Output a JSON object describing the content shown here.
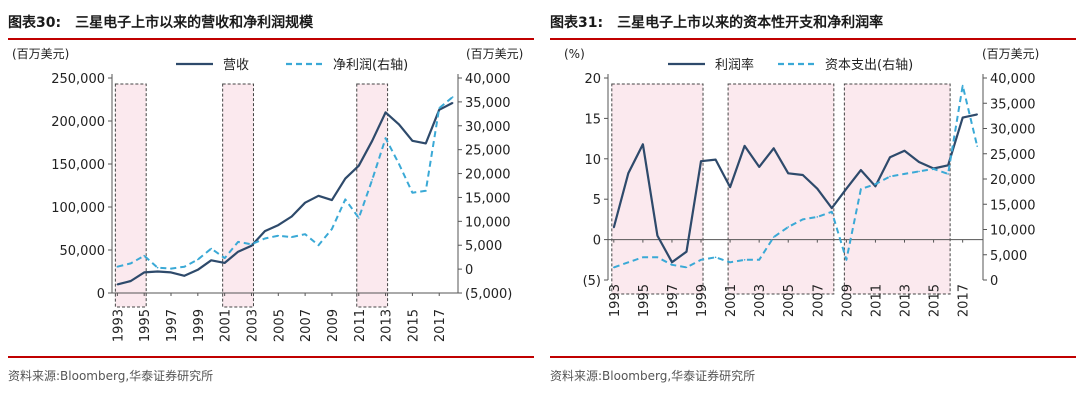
{
  "panels": [
    {
      "title_num": "图表30:",
      "title_text": "三星电子上市以来的营收和净利润规模",
      "source": "资料来源:Bloomberg,华泰证券研究所"
    },
    {
      "title_num": "图表31:",
      "title_text": "三星电子上市以来的资本性开支和净利润率",
      "source": "资料来源:Bloomberg,华泰证券研究所"
    }
  ],
  "colors": {
    "primary": "#2e4a6b",
    "secondary": "#3aa9d6",
    "rule": "#c00000",
    "shade": "#fbe9ee",
    "box": "#444444"
  },
  "chart_data": [
    {
      "type": "line",
      "x": [
        1993,
        1994,
        1995,
        1996,
        1997,
        1998,
        1999,
        2000,
        2001,
        2002,
        2003,
        2004,
        2005,
        2006,
        2007,
        2008,
        2009,
        2010,
        2011,
        2012,
        2013,
        2014,
        2015,
        2016,
        2017,
        2018
      ],
      "x_tick_labels": [
        "1993",
        "1995",
        "1997",
        "1999",
        "2001",
        "2003",
        "2005",
        "2007",
        "2009",
        "2011",
        "2013",
        "2015",
        "2017"
      ],
      "left_unit": "(百万美元)",
      "right_unit": "(百万美元)",
      "left_axis": {
        "lim": [
          0,
          250000
        ],
        "ticks": [
          0,
          50000,
          100000,
          150000,
          200000,
          250000
        ],
        "tick_labels": [
          "0",
          "50,000",
          "100,000",
          "150,000",
          "200,000",
          "250,000"
        ]
      },
      "right_axis": {
        "lim": [
          -5000,
          40000
        ],
        "ticks": [
          -5000,
          0,
          5000,
          10000,
          15000,
          20000,
          25000,
          30000,
          35000,
          40000
        ],
        "tick_labels": [
          "(5,000)",
          "0",
          "5,000",
          "10,000",
          "15,000",
          "20,000",
          "25,000",
          "30,000",
          "35,000",
          "40,000"
        ]
      },
      "series": [
        {
          "name": "营收",
          "axis": "left",
          "style": "solid",
          "values": [
            10000,
            14000,
            24000,
            25000,
            24000,
            20000,
            27000,
            38000,
            35000,
            48000,
            55000,
            72000,
            79000,
            89000,
            105000,
            113000,
            108000,
            133000,
            148000,
            177000,
            210000,
            196000,
            177000,
            174000,
            213000,
            221000
          ]
        },
        {
          "name": "净利润(右轴)",
          "axis": "right",
          "style": "dashed",
          "values": [
            500,
            1200,
            2800,
            300,
            100,
            500,
            2000,
            4300,
            2300,
            5700,
            5200,
            6400,
            7000,
            6700,
            7300,
            5000,
            8400,
            14600,
            10700,
            18700,
            27400,
            22000,
            16000,
            16400,
            33700,
            36000
          ]
        }
      ],
      "shaded_periods": [
        [
          1993,
          1995
        ],
        [
          2001,
          2003
        ],
        [
          2011,
          2013
        ]
      ]
    },
    {
      "type": "line",
      "x": [
        1993,
        1994,
        1995,
        1996,
        1997,
        1998,
        1999,
        2000,
        2001,
        2002,
        2003,
        2004,
        2005,
        2006,
        2007,
        2008,
        2009,
        2010,
        2011,
        2012,
        2013,
        2014,
        2015,
        2016,
        2017,
        2018
      ],
      "x_tick_labels": [
        "1993",
        "1995",
        "1997",
        "1999",
        "2001",
        "2003",
        "2005",
        "2007",
        "2009",
        "2011",
        "2013",
        "2015",
        "2017"
      ],
      "left_unit": "(%)",
      "right_unit": "(百万美元)",
      "left_axis": {
        "lim": [
          -5,
          20
        ],
        "ticks": [
          -5,
          0,
          5,
          10,
          15,
          20
        ],
        "tick_labels": [
          "(5)",
          "0",
          "5",
          "10",
          "15",
          "20"
        ]
      },
      "right_axis": {
        "lim": [
          0,
          40000
        ],
        "ticks": [
          0,
          5000,
          10000,
          15000,
          20000,
          25000,
          30000,
          35000,
          40000
        ],
        "tick_labels": [
          "0",
          "5,000",
          "10,000",
          "15,000",
          "20,000",
          "25,000",
          "30,000",
          "35,000",
          "40,000"
        ]
      },
      "series": [
        {
          "name": "利润率",
          "axis": "left",
          "style": "solid",
          "values": [
            1.5,
            8.2,
            11.8,
            0.5,
            -2.8,
            -1.5,
            9.7,
            9.9,
            6.5,
            11.6,
            9.0,
            11.3,
            8.2,
            8.0,
            6.3,
            3.9,
            6.3,
            8.6,
            6.6,
            10.2,
            11.0,
            9.6,
            8.8,
            9.2,
            15.1,
            15.5
          ]
        },
        {
          "name": "资本支出(右轴)",
          "axis": "right",
          "style": "dashed",
          "values": [
            2500,
            3500,
            4500,
            4500,
            3000,
            2500,
            4000,
            4500,
            3500,
            4000,
            4000,
            8500,
            10500,
            12000,
            12500,
            13500,
            4000,
            18000,
            19000,
            20500,
            21000,
            21500,
            22000,
            21000,
            38500,
            26500
          ]
        }
      ],
      "shaded_periods": [
        [
          1993,
          1999
        ],
        [
          2001,
          2008
        ],
        [
          2009,
          2016
        ]
      ]
    }
  ]
}
